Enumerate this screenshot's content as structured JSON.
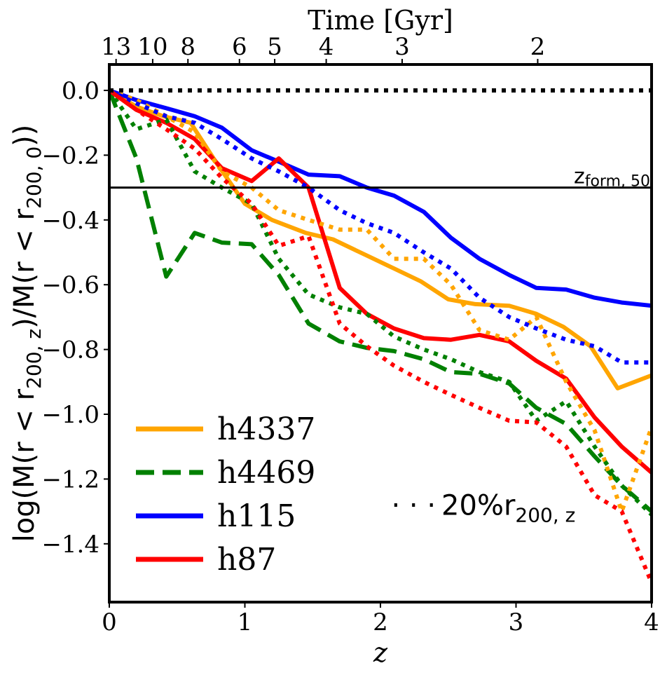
{
  "chart_data": {
    "type": "line",
    "xlabel": "z",
    "ylabel_parts": {
      "a": "log(M(r < r",
      "a_sub": "200, z",
      "b": ")/M(r < r",
      "b_sub": "200, 0",
      "c": "))"
    },
    "top_xlabel": "Time [Gyr]",
    "xlim": [
      0,
      4
    ],
    "ylim": [
      -1.58,
      0.08
    ],
    "xticks": [
      0,
      1,
      2,
      3,
      4
    ],
    "xtick_labels": [
      "0",
      "1",
      "2",
      "3",
      "4"
    ],
    "yticks": [
      0.0,
      -0.2,
      -0.4,
      -0.6,
      -0.8,
      -1.0,
      -1.2,
      -1.4
    ],
    "ytick_labels": [
      "0.0",
      "−0.2",
      "−0.4",
      "−0.6",
      "−0.8",
      "−1.0",
      "−1.2",
      "−1.4"
    ],
    "top_ticks": [
      {
        "label": "13",
        "z": 0.05
      },
      {
        "label": "10",
        "z": 0.32
      },
      {
        "label": "8",
        "z": 0.58
      },
      {
        "label": "6",
        "z": 0.96
      },
      {
        "label": "5",
        "z": 1.22
      },
      {
        "label": "4",
        "z": 1.6
      },
      {
        "label": "3",
        "z": 2.16
      },
      {
        "label": "2",
        "z": 3.16
      }
    ],
    "hline": {
      "y": -0.3,
      "label": "z",
      "label_sub": "form, 50"
    },
    "reference": {
      "y": 0.0,
      "style": "dotted"
    },
    "note": {
      "dots": "· · ·",
      "text": "20%r",
      "sub": "200, z",
      "x": 2.08,
      "y": -1.28
    },
    "legend": [
      {
        "name": "h4337",
        "color": "#ffa500",
        "style": "solid"
      },
      {
        "name": "h4469",
        "color": "#008000",
        "style": "dashed"
      },
      {
        "name": "h115",
        "color": "#0000ff",
        "style": "solid"
      },
      {
        "name": "h87",
        "color": "#ff0000",
        "style": "solid"
      }
    ],
    "series": [
      {
        "name": "h4337",
        "color": "#ffa500",
        "style": "solid",
        "x": [
          0,
          0.2,
          0.4,
          0.6,
          0.8,
          1.0,
          1.2,
          1.45,
          1.65,
          1.9,
          2.1,
          2.3,
          2.5,
          2.7,
          2.95,
          3.15,
          3.35,
          3.55,
          3.75,
          4.0
        ],
        "y": [
          0.0,
          -0.05,
          -0.08,
          -0.1,
          -0.23,
          -0.35,
          -0.4,
          -0.44,
          -0.46,
          -0.51,
          -0.55,
          -0.59,
          -0.645,
          -0.66,
          -0.665,
          -0.69,
          -0.73,
          -0.79,
          -0.92,
          -0.88
        ]
      },
      {
        "name": "h4469",
        "color": "#008000",
        "style": "dashed",
        "x": [
          0,
          0.2,
          0.42,
          0.63,
          0.83,
          1.05,
          1.25,
          1.47,
          1.7,
          1.9,
          2.1,
          2.32,
          2.52,
          2.73,
          2.95,
          3.15,
          3.37,
          3.58,
          3.78,
          4.0
        ],
        "y": [
          0.0,
          -0.21,
          -0.575,
          -0.44,
          -0.47,
          -0.475,
          -0.57,
          -0.72,
          -0.775,
          -0.795,
          -0.805,
          -0.83,
          -0.87,
          -0.875,
          -0.905,
          -0.98,
          -1.03,
          -1.13,
          -1.22,
          -1.3
        ]
      },
      {
        "name": "h115",
        "color": "#0000ff",
        "style": "solid",
        "x": [
          0,
          0.2,
          0.42,
          0.63,
          0.83,
          1.05,
          1.25,
          1.47,
          1.7,
          1.9,
          2.1,
          2.32,
          2.52,
          2.73,
          2.95,
          3.15,
          3.37,
          3.58,
          3.78,
          4.0
        ],
        "y": [
          0.0,
          -0.03,
          -0.055,
          -0.08,
          -0.115,
          -0.185,
          -0.22,
          -0.26,
          -0.265,
          -0.3,
          -0.325,
          -0.375,
          -0.455,
          -0.52,
          -0.57,
          -0.61,
          -0.615,
          -0.64,
          -0.655,
          -0.665
        ]
      },
      {
        "name": "h87",
        "color": "#ff0000",
        "style": "solid",
        "x": [
          0,
          0.2,
          0.42,
          0.63,
          0.83,
          1.05,
          1.25,
          1.47,
          1.7,
          1.9,
          2.1,
          2.32,
          2.52,
          2.73,
          2.95,
          3.15,
          3.37,
          3.58,
          3.78,
          4.0
        ],
        "y": [
          0.0,
          -0.06,
          -0.1,
          -0.15,
          -0.24,
          -0.28,
          -0.21,
          -0.3,
          -0.61,
          -0.69,
          -0.735,
          -0.765,
          -0.77,
          -0.755,
          -0.775,
          -0.835,
          -0.89,
          -1.01,
          -1.1,
          -1.18
        ]
      },
      {
        "name": "h4337 (20%r200,z)",
        "color": "#ffa500",
        "style": "dotted",
        "x": [
          0,
          0.2,
          0.42,
          0.63,
          0.83,
          1.05,
          1.25,
          1.47,
          1.7,
          1.9,
          2.1,
          2.32,
          2.52,
          2.73,
          2.95,
          3.15,
          3.37,
          3.58,
          3.78,
          4.0
        ],
        "y": [
          0.0,
          -0.03,
          -0.08,
          -0.13,
          -0.25,
          -0.3,
          -0.37,
          -0.4,
          -0.43,
          -0.43,
          -0.52,
          -0.52,
          -0.6,
          -0.74,
          -0.77,
          -0.7,
          -0.9,
          -1.05,
          -1.3,
          -1.04
        ]
      },
      {
        "name": "h4469 (20%r200,z)",
        "color": "#008000",
        "style": "dotted",
        "x": [
          0,
          0.2,
          0.42,
          0.63,
          0.83,
          1.05,
          1.25,
          1.47,
          1.7,
          1.9,
          2.1,
          2.32,
          2.52,
          2.73,
          2.95,
          3.15,
          3.37,
          3.58,
          3.78,
          4.0
        ],
        "y": [
          0.0,
          -0.12,
          -0.09,
          -0.25,
          -0.3,
          -0.35,
          -0.52,
          -0.63,
          -0.67,
          -0.69,
          -0.76,
          -0.8,
          -0.83,
          -0.87,
          -0.9,
          -1.02,
          -0.96,
          -1.1,
          -1.22,
          -1.31
        ]
      },
      {
        "name": "h115 (20%r200,z)",
        "color": "#0000ff",
        "style": "dotted",
        "x": [
          0,
          0.2,
          0.42,
          0.63,
          0.83,
          1.05,
          1.25,
          1.47,
          1.7,
          1.9,
          2.1,
          2.32,
          2.52,
          2.73,
          2.95,
          3.15,
          3.37,
          3.58,
          3.78,
          4.0
        ],
        "y": [
          0.0,
          -0.04,
          -0.08,
          -0.1,
          -0.15,
          -0.21,
          -0.25,
          -0.3,
          -0.37,
          -0.41,
          -0.44,
          -0.5,
          -0.55,
          -0.64,
          -0.7,
          -0.735,
          -0.77,
          -0.79,
          -0.84,
          -0.84
        ]
      },
      {
        "name": "h87 (20%r200,z)",
        "color": "#ff0000",
        "style": "dotted",
        "x": [
          0,
          0.2,
          0.42,
          0.63,
          0.83,
          1.05,
          1.25,
          1.47,
          1.7,
          1.9,
          2.1,
          2.32,
          2.52,
          2.73,
          2.95,
          3.15,
          3.37,
          3.58,
          3.78,
          4.0
        ],
        "y": [
          0.0,
          -0.06,
          -0.12,
          -0.18,
          -0.27,
          -0.35,
          -0.48,
          -0.45,
          -0.72,
          -0.79,
          -0.85,
          -0.9,
          -0.94,
          -0.98,
          -1.02,
          -1.025,
          -1.1,
          -1.25,
          -1.3,
          -1.52
        ]
      }
    ]
  }
}
